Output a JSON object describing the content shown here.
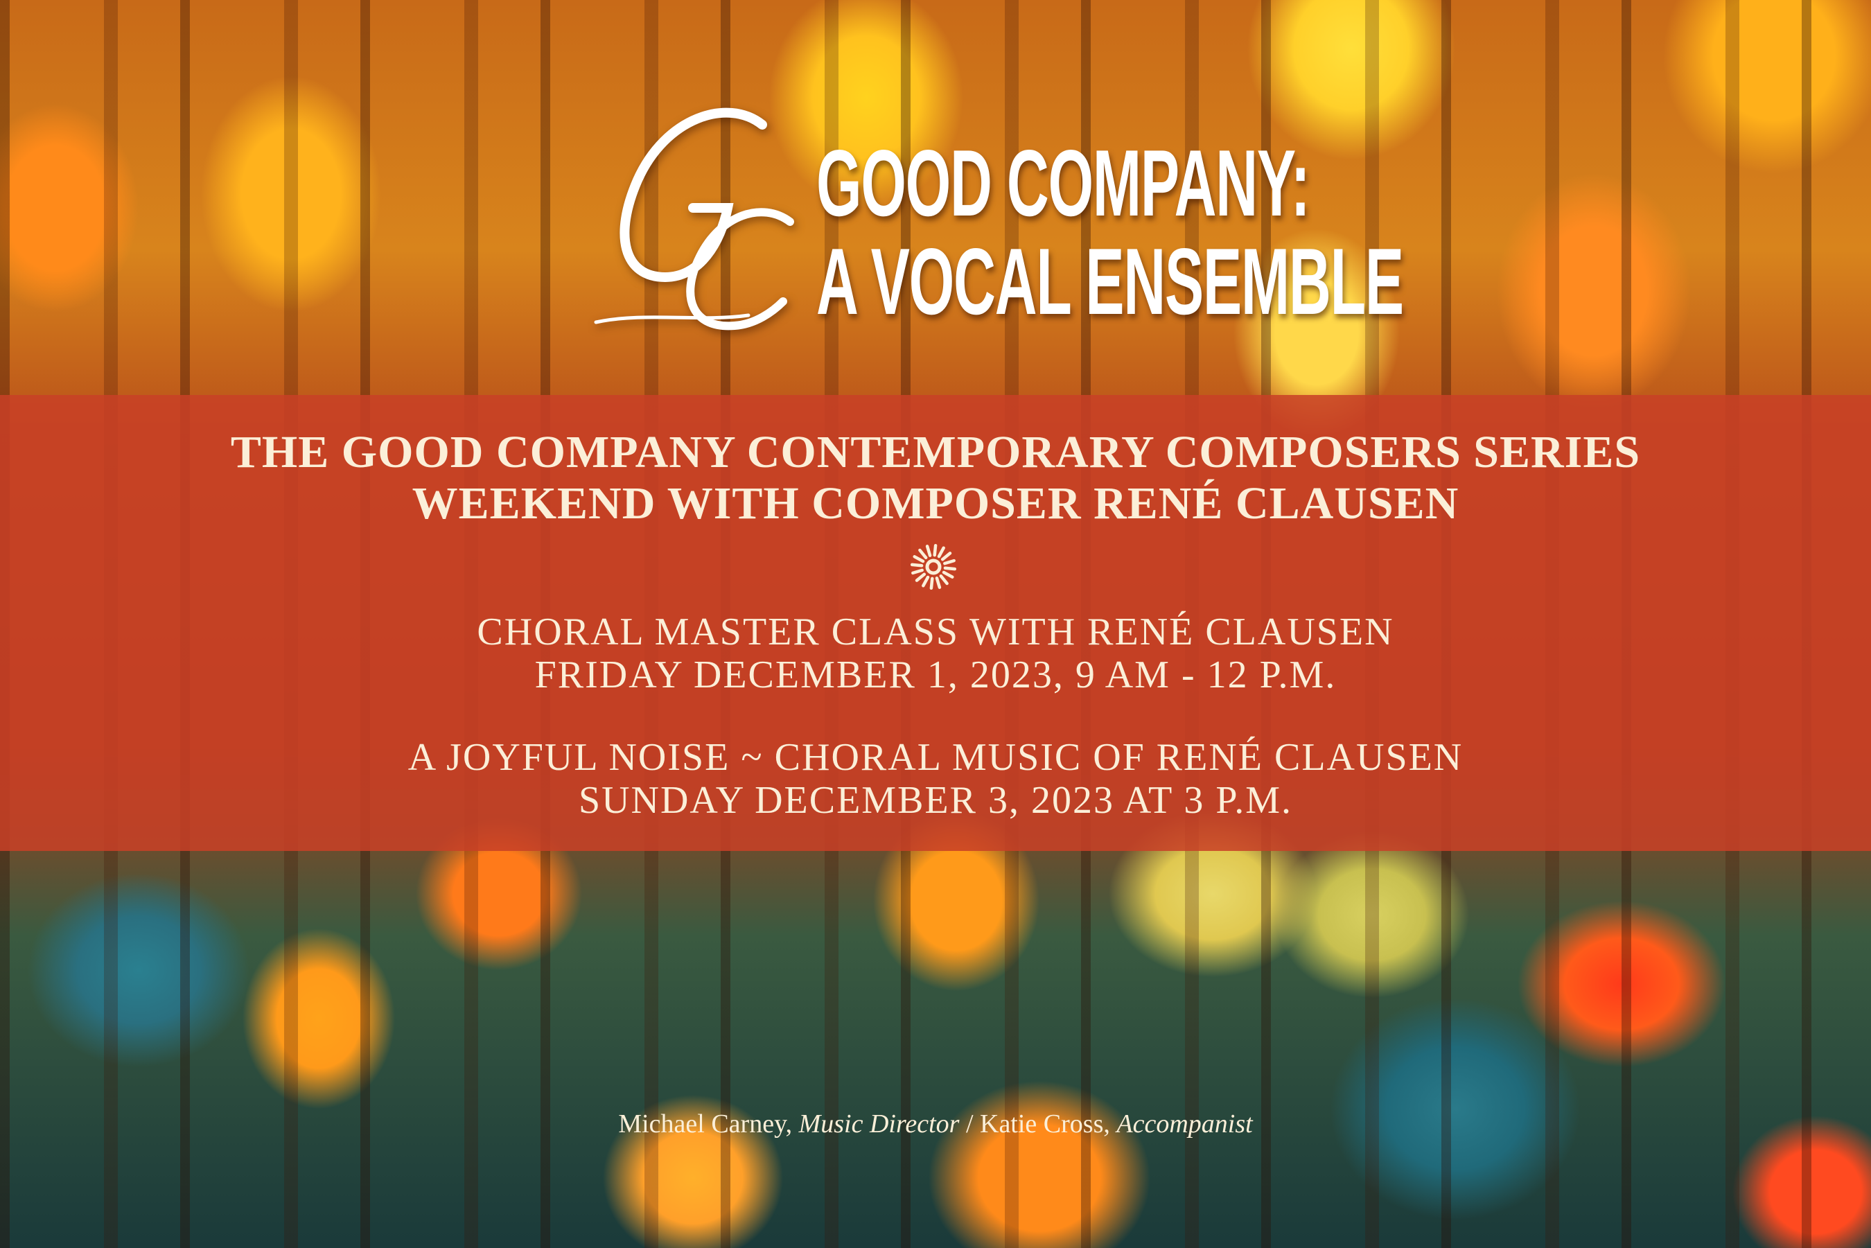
{
  "logo": {
    "monogram": "GC",
    "line1": "GOOD COMPANY:",
    "line2": "A VOCAL ENSEMBLE"
  },
  "series": {
    "line1": "THE GOOD COMPANY CONTEMPORARY COMPOSERS SERIES",
    "line2": "WEEKEND WITH COMPOSER RENÉ CLAUSEN"
  },
  "divider_icon": "sun-icon",
  "events": [
    {
      "title": "CHORAL MASTER CLASS WITH RENÉ CLAUSEN",
      "when": "FRIDAY DECEMBER 1, 2023, 9 AM - 12 P.M."
    },
    {
      "title": "A JOYFUL NOISE ~ CHORAL MUSIC OF RENÉ CLAUSEN",
      "when": "SUNDAY DECEMBER 3, 2023 AT 3 P.M."
    }
  ],
  "credits": {
    "name1": "Michael Carney,",
    "role1": "Music Director",
    "sep": "/",
    "name2": "Katie Cross,",
    "role2": "Accompanist"
  },
  "colors": {
    "band": "#c84026",
    "text": "#fbefd8",
    "title": "#ffffff"
  }
}
